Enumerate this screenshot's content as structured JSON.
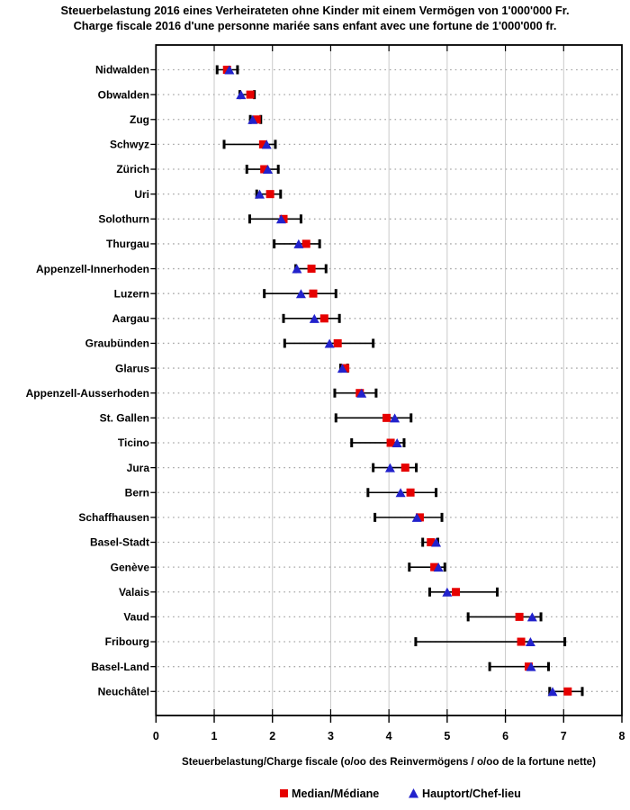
{
  "title": {
    "line1": "Steuerbelastung 2016 eines Verheirateten ohne Kinder mit einem Vermögen von 1'000'000 Fr.",
    "line2": "Charge fiscale 2016 d'une personne mariée sans enfant avec une fortune de 1'000'000 fr."
  },
  "colors": {
    "median": "#e60000",
    "hauptort": "#2222cc",
    "gridline": "#c9c9c9",
    "row_guide": "#a6a6a6",
    "axis": "#000000"
  },
  "legend": {
    "items": [
      {
        "label": "Median/Médiane",
        "marker": "square-icon",
        "color": "#e60000"
      },
      {
        "label": "Hauptort/Chef-lieu",
        "marker": "triangle-up-icon",
        "color": "#2222cc"
      }
    ],
    "position": "bottom"
  },
  "chart_data": {
    "type": "scatter",
    "subtype": "horizontal-range-dot-plot",
    "orientation": "horizontal",
    "title": "Steuerbelastung 2016 eines Verheirateten ohne Kinder mit einem Vermögen von 1'000'000 Fr. / Charge fiscale 2016 d'une personne mariée sans enfant avec une fortune de 1'000'000 fr.",
    "xlabel": "Steuerbelastung/Charge fiscale (o/oo des Reinvermögens / o/oo de la fortune nette)",
    "xlim": [
      0,
      8
    ],
    "x_ticks": [
      0,
      1,
      2,
      3,
      4,
      5,
      6,
      7,
      8
    ],
    "grid": {
      "vertical": "solid-light-gray",
      "row_guides": "dotted-gray"
    },
    "legend_position": "bottom",
    "categories": [
      "Nidwalden",
      "Obwalden",
      "Zug",
      "Schwyz",
      "Zürich",
      "Uri",
      "Solothurn",
      "Thurgau",
      "Appenzell-Innerhoden",
      "Luzern",
      "Aargau",
      "Graubünden",
      "Glarus",
      "Appenzell-Ausserhoden",
      "St. Gallen",
      "Ticino",
      "Jura",
      "Bern",
      "Schaffhausen",
      "Basel-Stadt",
      "Genève",
      "Valais",
      "Vaud",
      "Fribourg",
      "Basel-Land",
      "Neuchâtel"
    ],
    "series": [
      {
        "name": "Range min (left whisker)",
        "marker": "whisker-cap",
        "color": "#000000",
        "values": [
          1.05,
          1.44,
          1.62,
          1.17,
          1.56,
          1.73,
          1.61,
          2.03,
          2.4,
          1.86,
          2.19,
          2.21,
          3.17,
          3.07,
          3.09,
          3.36,
          3.73,
          3.64,
          3.76,
          4.58,
          4.35,
          4.7,
          5.36,
          4.46,
          5.73,
          6.76
        ]
      },
      {
        "name": "Range max (right whisker)",
        "marker": "whisker-cap",
        "color": "#000000",
        "values": [
          1.4,
          1.69,
          1.8,
          2.05,
          2.1,
          2.14,
          2.49,
          2.81,
          2.92,
          3.09,
          3.15,
          3.73,
          3.29,
          3.78,
          4.38,
          4.26,
          4.47,
          4.81,
          4.91,
          4.84,
          4.96,
          5.86,
          6.61,
          7.02,
          6.74,
          7.32
        ]
      },
      {
        "name": "Median/Médiane",
        "marker": "square",
        "color": "#e60000",
        "values": [
          1.22,
          1.62,
          1.73,
          1.84,
          1.86,
          1.96,
          2.19,
          2.58,
          2.67,
          2.7,
          2.89,
          3.12,
          3.25,
          3.5,
          3.96,
          4.03,
          4.28,
          4.37,
          4.53,
          4.72,
          4.78,
          5.15,
          6.24,
          6.27,
          6.4,
          7.07
        ]
      },
      {
        "name": "Hauptort/Chef-lieu",
        "marker": "triangle-up",
        "color": "#2222cc",
        "values": [
          1.26,
          1.46,
          1.66,
          1.9,
          1.92,
          1.78,
          2.15,
          2.45,
          2.42,
          2.49,
          2.72,
          2.98,
          3.2,
          3.53,
          4.1,
          4.14,
          4.02,
          4.2,
          4.48,
          4.81,
          4.85,
          5.0,
          6.46,
          6.43,
          6.44,
          6.81
        ]
      }
    ]
  }
}
